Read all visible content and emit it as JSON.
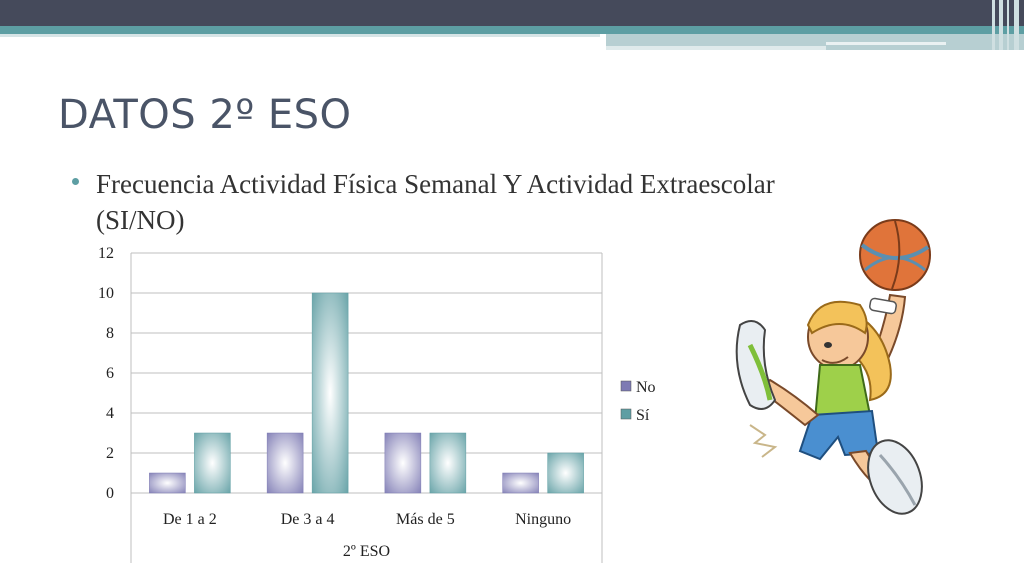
{
  "slide": {
    "title": "DATOS 2º ESO",
    "bullet": "Frecuencia Actividad Física Semanal Y Actividad Extraescolar (SI/NO)"
  },
  "colors": {
    "header": "#454a5b",
    "accent": "#5d9ea3",
    "series_no": "#7d7ab3",
    "series_si": "#5f9ea3"
  },
  "chart_data": {
    "type": "bar",
    "categories": [
      "De 1 a 2",
      "De 3 a 4",
      "Más de 5",
      "Ninguno"
    ],
    "series": [
      {
        "name": "No",
        "values": [
          1,
          3,
          3,
          1
        ]
      },
      {
        "name": "Sí",
        "values": [
          3,
          10,
          3,
          2
        ]
      }
    ],
    "xlabel": "2º ESO",
    "ylabel": "",
    "ylim": [
      0,
      12
    ],
    "yticks": [
      0,
      2,
      4,
      6,
      8,
      10,
      12
    ],
    "grid": true,
    "legend": "right"
  },
  "illustration": {
    "icon": "basketball-girl-illustration"
  }
}
